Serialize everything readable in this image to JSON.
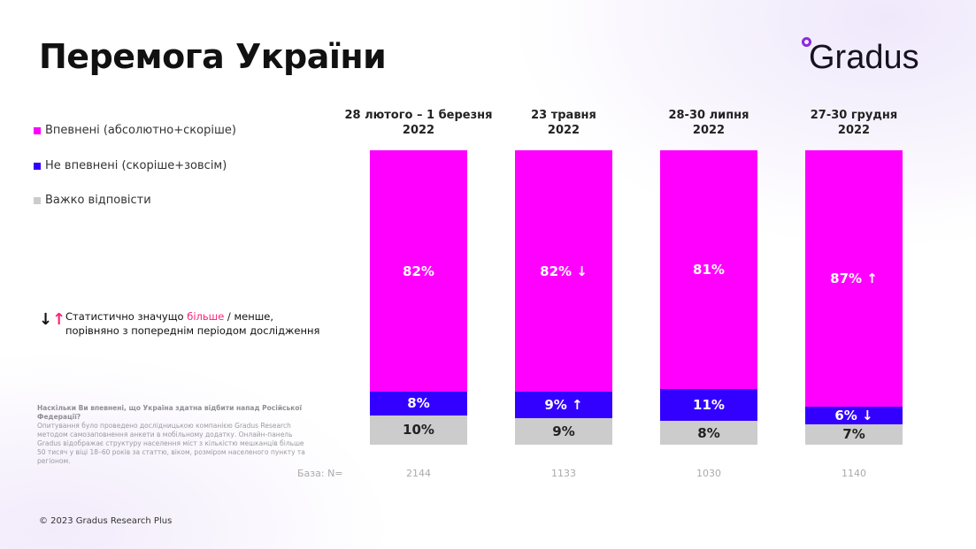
{
  "title": "Перемога України",
  "logo": "Gradus",
  "legend": [
    {
      "label": "Впевнені (абсолютно+скоріше)",
      "color": "#ff00ff"
    },
    {
      "label": "Не впевнені (скоріше+зовсім)",
      "color": "#3300ff"
    },
    {
      "label": "Важко відповісти",
      "color": "#cccccc"
    }
  ],
  "note": {
    "arrows": "↓↑",
    "part1": "Статистично значущо ",
    "highlight": "більше",
    "part2": " / менше,",
    "line2": "порівняно з попереднім періодом дослідження"
  },
  "question": "Наскільки Ви впевнені, що Україна здатна відбити напад Російської Федерації?",
  "method": "Опитування було проведено дослідницькою компанією Gradus Research методом самозаповнення анкети в мобільному додатку. Онлайн-панель Gradus відображає структуру населення міст з кількістю мешканців більше 50 тисяч у віці 18–60 років за статтю, віком, розміром населеного пункту та регіоном.",
  "base_label": "База: N=",
  "copyright": "© 2023 Gradus Research Plus",
  "chart_data": {
    "type": "bar",
    "stacked": true,
    "categories": [
      [
        "28 лютого – 1 березня",
        "2022"
      ],
      [
        "23 травня",
        "2022"
      ],
      [
        "28-30 липня",
        "2022"
      ],
      [
        "27-30 грудня",
        "2022"
      ]
    ],
    "base_n": [
      "2144",
      "1133",
      "1030",
      "1140"
    ],
    "series": [
      {
        "name": "Впевнені (абсолютно+скоріше)",
        "color": "#ff00ff",
        "values": [
          82,
          82,
          81,
          87
        ],
        "arrows": [
          "",
          "↓",
          "",
          "↑"
        ]
      },
      {
        "name": "Не впевнені (скоріше+зовсім)",
        "color": "#3300ff",
        "values": [
          8,
          9,
          11,
          6
        ],
        "arrows": [
          "",
          "↑",
          "",
          "↓"
        ]
      },
      {
        "name": "Важко відповісти",
        "color": "#cccccc",
        "values": [
          10,
          9,
          8,
          7
        ],
        "arrows": [
          "",
          "",
          "",
          ""
        ]
      }
    ],
    "unit": "%",
    "ylim": [
      0,
      100
    ]
  }
}
